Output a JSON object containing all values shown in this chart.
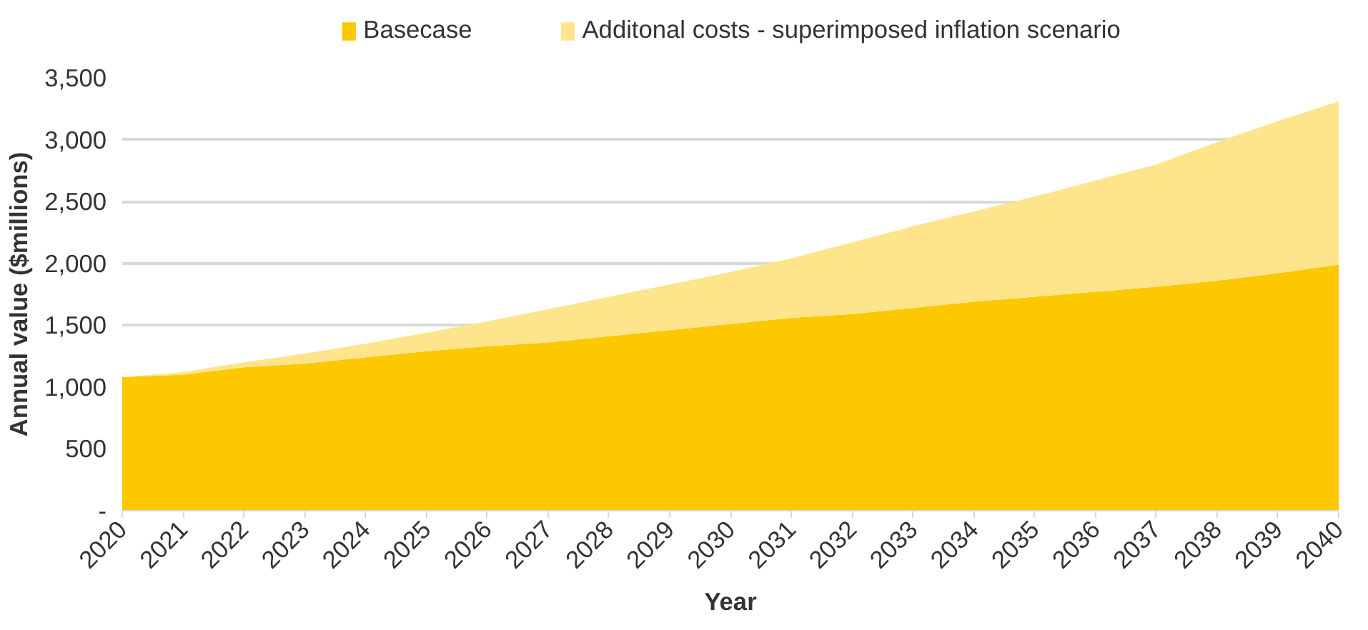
{
  "chart_data": {
    "type": "area",
    "stacked": true,
    "xlabel": "Year",
    "ylabel": "Annual value ($millions)",
    "x": [
      2020,
      2021,
      2022,
      2023,
      2024,
      2025,
      2026,
      2027,
      2028,
      2029,
      2030,
      2031,
      2032,
      2033,
      2034,
      2035,
      2036,
      2037,
      2038,
      2039,
      2040
    ],
    "series": [
      {
        "name": "Basecase",
        "color": "#fdc800",
        "values": [
          1080,
          1100,
          1160,
          1190,
          1240,
          1290,
          1330,
          1360,
          1410,
          1460,
          1510,
          1560,
          1590,
          1640,
          1690,
          1730,
          1770,
          1810,
          1860,
          1920,
          1990
        ]
      },
      {
        "name": "Additonal costs - superimposed inflation scenario",
        "color": "#fee58c",
        "values": [
          0,
          20,
          40,
          80,
          110,
          150,
          200,
          270,
          320,
          370,
          420,
          480,
          580,
          660,
          730,
          810,
          900,
          990,
          1120,
          1230,
          1320
        ]
      }
    ],
    "xlim": [
      2020,
      2040
    ],
    "xticks": [
      2020,
      2021,
      2022,
      2023,
      2024,
      2025,
      2026,
      2027,
      2028,
      2029,
      2030,
      2031,
      2032,
      2033,
      2034,
      2035,
      2036,
      2037,
      2038,
      2039,
      2040
    ],
    "ylim": [
      0,
      3500
    ],
    "yticks": [
      {
        "value": 0,
        "label": "-"
      },
      {
        "value": 500,
        "label": "500"
      },
      {
        "value": 1000,
        "label": "1,000"
      },
      {
        "value": 1500,
        "label": "1,500"
      },
      {
        "value": 2000,
        "label": "2,000"
      },
      {
        "value": 2500,
        "label": "2,500"
      },
      {
        "value": 3000,
        "label": "3,000"
      },
      {
        "value": 3500,
        "label": "3,500"
      }
    ],
    "grid": "y",
    "legend": "top"
  }
}
